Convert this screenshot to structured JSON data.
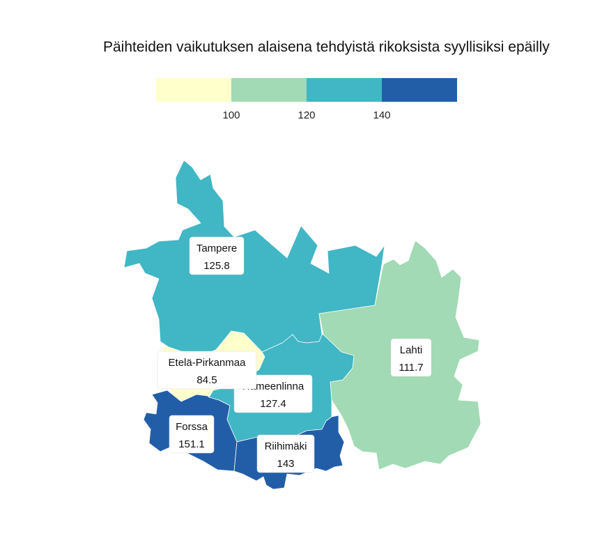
{
  "title": "Päihteiden vaikutuksen alaisena tehdyistä rikoksista syyllisiksi epäilly",
  "legend": {
    "breaks": [
      "100",
      "120",
      "140"
    ],
    "colors": [
      "#ffffcc",
      "#a1dab4",
      "#41b6c4",
      "#225ea8"
    ]
  },
  "regions": [
    {
      "name": "Tampere",
      "value": "125.8",
      "color": "#41b6c4"
    },
    {
      "name": "Lahti",
      "value": "111.7",
      "color": "#a1dab4"
    },
    {
      "name": "Etelä-Pirkanmaa",
      "value": "84.5",
      "color": "#ffffcc"
    },
    {
      "name": "Hämeenlinna",
      "value": "127.4",
      "color": "#41b6c4"
    },
    {
      "name": "Forssa",
      "value": "151.1",
      "color": "#225ea8"
    },
    {
      "name": "Riihimäki",
      "value": "143",
      "color": "#225ea8"
    }
  ]
}
